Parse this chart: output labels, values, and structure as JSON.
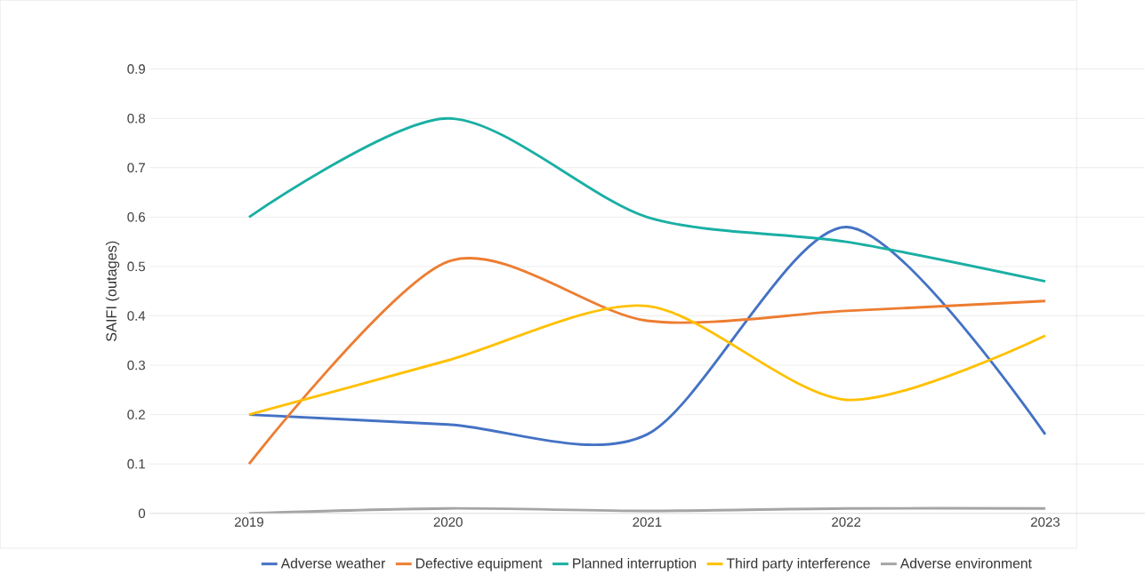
{
  "chart_data": {
    "type": "line",
    "ylabel": "SAIFI (outages)",
    "categories": [
      "2019",
      "2020",
      "2021",
      "2022",
      "2023"
    ],
    "series": [
      {
        "name": "Adverse weather",
        "color": "#4472c4",
        "values": [
          0.2,
          0.18,
          0.16,
          0.58,
          0.16
        ]
      },
      {
        "name": "Defective equipment",
        "color": "#ed7d31",
        "values": [
          0.1,
          0.51,
          0.39,
          0.41,
          0.43
        ]
      },
      {
        "name": "Planned interruption",
        "color": "#1aafa4",
        "values": [
          0.6,
          0.8,
          0.6,
          0.55,
          0.47
        ]
      },
      {
        "name": "Third party interference",
        "color": "#ffc000",
        "values": [
          0.2,
          0.31,
          0.42,
          0.23,
          0.36
        ]
      },
      {
        "name": "Adverse environment",
        "color": "#a5a5a5",
        "values": [
          0,
          0.01,
          0.005,
          0.01,
          0.01
        ]
      }
    ],
    "ylim": [
      0,
      0.9
    ],
    "yticks": [
      0,
      0.1,
      0.2,
      0.3,
      0.4,
      0.5,
      0.6,
      0.7,
      0.8,
      0.9
    ],
    "grid": "y",
    "legend": "bottom",
    "marker": "none",
    "line_style": "solid"
  }
}
